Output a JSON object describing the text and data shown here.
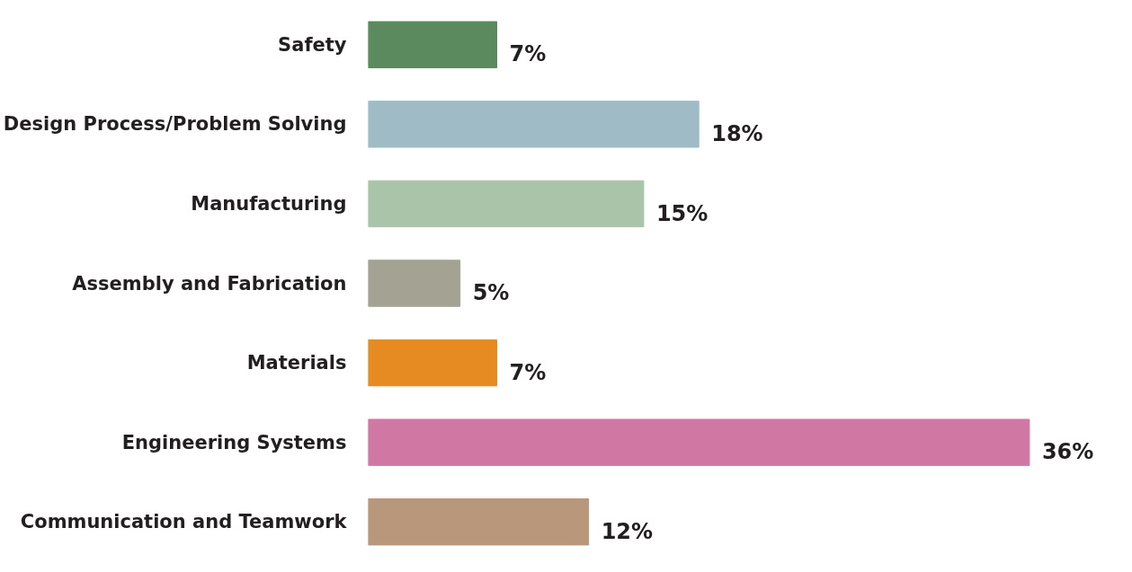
{
  "chart_data": {
    "type": "bar",
    "orientation": "horizontal",
    "categories": [
      "Safety",
      "Design Process/Problem Solving",
      "Manufacturing",
      "Assembly and Fabrication",
      "Materials",
      "Engineering Systems",
      "Communication and Teamwork"
    ],
    "values": [
      7,
      18,
      15,
      5,
      7,
      36,
      12
    ],
    "colors": [
      "#5a8a5e",
      "#9fbcc6",
      "#a9c4a8",
      "#a4a293",
      "#e58b22",
      "#d077a4",
      "#b8977a"
    ],
    "value_labels": [
      "7%",
      "18%",
      "15%",
      "5%",
      "7%",
      "36%",
      "12%"
    ],
    "grid": false
  }
}
